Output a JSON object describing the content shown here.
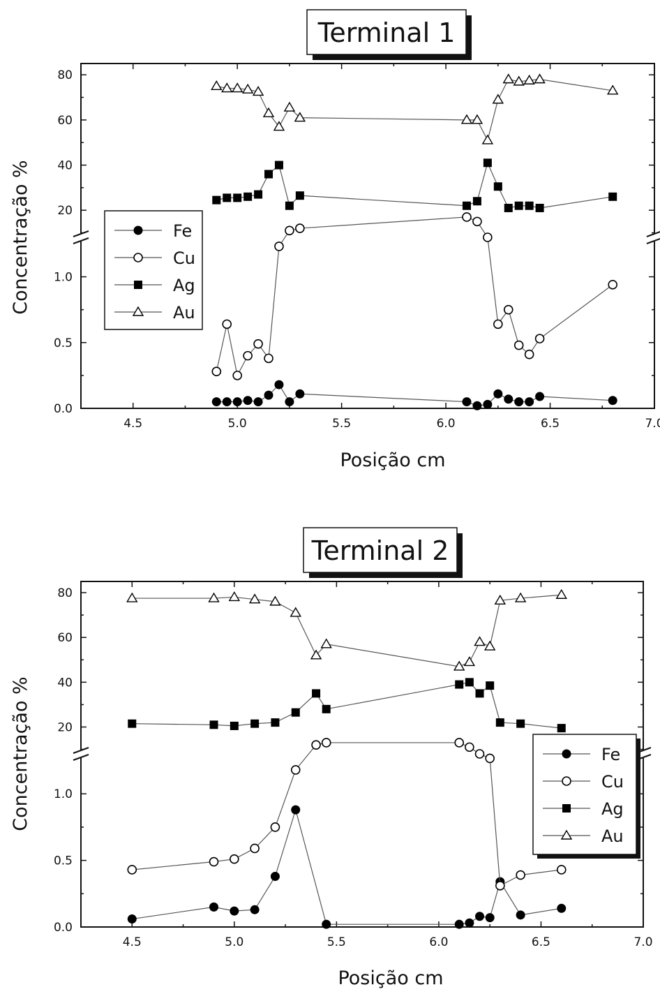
{
  "chart_data": [
    {
      "type": "scatter",
      "title": "Terminal 1",
      "xlabel": "Posição cm",
      "ylabel": "Concentração %",
      "xlim": [
        4.25,
        7.0
      ],
      "x_ticks": [
        "4.5",
        "5.0",
        "5.5",
        "6.0",
        "6.5",
        "7.0"
      ],
      "y_upper_ticks": [
        "20",
        "40",
        "60",
        "80"
      ],
      "y_lower_ticks": [
        "0.0",
        "0.5",
        "1.0"
      ],
      "y_break": true,
      "y_lower_range": [
        0.0,
        1.3
      ],
      "y_upper_range": [
        8,
        85
      ],
      "legend_position": "middle-left",
      "series": [
        {
          "name": "Fe",
          "marker": "filled-circle",
          "x": [
            4.9,
            4.95,
            5.0,
            5.05,
            5.1,
            5.15,
            5.2,
            5.25,
            5.3,
            6.1,
            6.15,
            6.2,
            6.25,
            6.3,
            6.35,
            6.4,
            6.45,
            6.8
          ],
          "y": [
            0.05,
            0.05,
            0.05,
            0.06,
            0.05,
            0.1,
            0.18,
            0.05,
            0.11,
            0.05,
            0.02,
            0.03,
            0.11,
            0.07,
            0.05,
            0.05,
            0.09,
            0.06
          ]
        },
        {
          "name": "Cu",
          "marker": "open-circle",
          "x": [
            4.9,
            4.95,
            5.0,
            5.05,
            5.1,
            5.15,
            5.2,
            5.25,
            5.3,
            6.1,
            6.15,
            6.2,
            6.25,
            6.3,
            6.35,
            6.4,
            6.45,
            6.8
          ],
          "y": [
            0.28,
            0.64,
            0.25,
            0.4,
            0.49,
            0.38,
            4,
            11,
            12,
            17,
            15,
            8,
            0.64,
            0.75,
            0.48,
            0.41,
            0.53,
            0.94
          ]
        },
        {
          "name": "Ag",
          "marker": "filled-square",
          "x": [
            4.9,
            4.95,
            5.0,
            5.05,
            5.1,
            5.15,
            5.2,
            5.25,
            5.3,
            6.1,
            6.15,
            6.2,
            6.25,
            6.3,
            6.35,
            6.4,
            6.45,
            6.8
          ],
          "y": [
            24.5,
            25.5,
            25.5,
            26,
            27,
            36,
            40,
            22,
            26.5,
            22,
            24,
            41,
            30.5,
            21,
            22,
            22,
            21,
            26
          ]
        },
        {
          "name": "Au",
          "marker": "open-triangle",
          "x": [
            4.9,
            4.95,
            5.0,
            5.05,
            5.1,
            5.15,
            5.2,
            5.25,
            5.3,
            6.1,
            6.15,
            6.2,
            6.25,
            6.3,
            6.35,
            6.4,
            6.45,
            6.8
          ],
          "y": [
            75,
            74,
            74,
            73.5,
            72.5,
            63,
            57,
            65.5,
            61,
            60,
            60,
            51,
            69,
            78,
            77,
            77.5,
            78,
            73
          ]
        }
      ]
    },
    {
      "type": "scatter",
      "title": "Terminal 2",
      "xlabel": "Posição cm",
      "ylabel": "Concentração %",
      "xlim": [
        4.25,
        7.0
      ],
      "x_ticks": [
        "4.5",
        "5.0",
        "5.5",
        "6.0",
        "6.5",
        "7.0"
      ],
      "y_upper_ticks": [
        "20",
        "40",
        "60",
        "80"
      ],
      "y_lower_ticks": [
        "0.0",
        "0.5",
        "1.0"
      ],
      "y_break": true,
      "y_lower_range": [
        0.0,
        1.3
      ],
      "y_upper_range": [
        8,
        85
      ],
      "legend_position": "middle-right",
      "series": [
        {
          "name": "Fe",
          "marker": "filled-circle",
          "x": [
            4.5,
            4.9,
            5.0,
            5.1,
            5.2,
            5.3,
            5.45,
            6.1,
            6.15,
            6.2,
            6.25,
            6.3,
            6.4,
            6.6
          ],
          "y": [
            0.06,
            0.15,
            0.12,
            0.13,
            0.38,
            0.88,
            0.02,
            0.02,
            0.03,
            0.08,
            0.07,
            0.34,
            0.09,
            0.14
          ]
        },
        {
          "name": "Cu",
          "marker": "open-circle",
          "x": [
            4.5,
            4.9,
            5.0,
            5.1,
            5.2,
            5.3,
            5.4,
            5.45,
            6.1,
            6.15,
            6.2,
            6.25,
            6.3,
            6.4,
            6.6
          ],
          "y": [
            0.43,
            0.49,
            0.51,
            0.59,
            0.75,
            1.18,
            12,
            13,
            13,
            11,
            8,
            6,
            0.31,
            0.39,
            0.43
          ]
        },
        {
          "name": "Ag",
          "marker": "filled-square",
          "x": [
            4.5,
            4.9,
            5.0,
            5.1,
            5.2,
            5.3,
            5.4,
            5.45,
            6.1,
            6.15,
            6.2,
            6.25,
            6.3,
            6.4,
            6.6
          ],
          "y": [
            21.5,
            21,
            20.5,
            21.5,
            22,
            26.5,
            35,
            28,
            39,
            40,
            35,
            38.5,
            22,
            21.5,
            19.5
          ]
        },
        {
          "name": "Au",
          "marker": "open-triangle",
          "x": [
            4.5,
            4.9,
            5.0,
            5.1,
            5.2,
            5.3,
            5.4,
            5.45,
            6.1,
            6.15,
            6.2,
            6.25,
            6.3,
            6.4,
            6.6
          ],
          "y": [
            77.5,
            77.5,
            78,
            77,
            76,
            71,
            52,
            57,
            47,
            49,
            58,
            56,
            76.5,
            77.5,
            79
          ]
        }
      ]
    }
  ]
}
